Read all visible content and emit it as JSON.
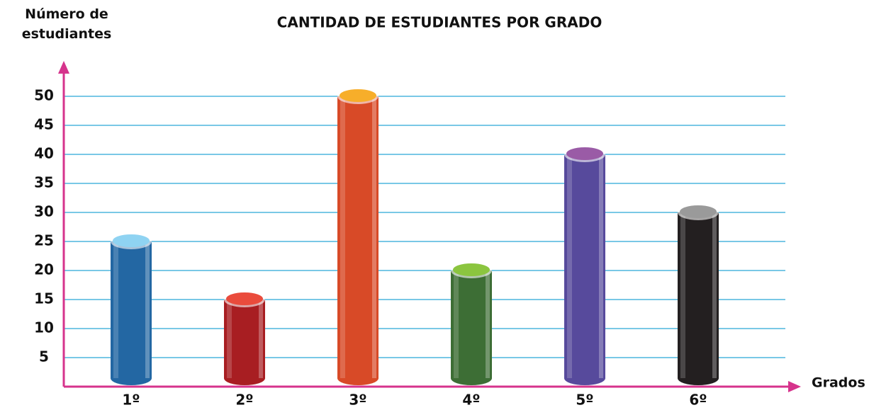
{
  "chart_data": {
    "type": "bar",
    "title": "CANTIDAD DE ESTUDIANTES POR GRADO",
    "y_label": "Número de estudiantes",
    "x_label": "Grados",
    "categories": [
      "1º",
      "2º",
      "3º",
      "4º",
      "5º",
      "6º"
    ],
    "values": [
      25,
      15,
      50,
      20,
      40,
      30
    ],
    "colors": [
      "#2367a3",
      "#a81e22",
      "#d84a27",
      "#3d6e35",
      "#574a9c",
      "#231f20"
    ],
    "cap_colors": [
      "#8fd3f2",
      "#ea4b3c",
      "#f7ae2a",
      "#8bc53f",
      "#9a5ba6",
      "#9a9a9a"
    ],
    "ylim": [
      0,
      55
    ],
    "yticks": [
      5,
      10,
      15,
      20,
      25,
      30,
      35,
      40,
      45,
      50
    ],
    "grid": true
  }
}
